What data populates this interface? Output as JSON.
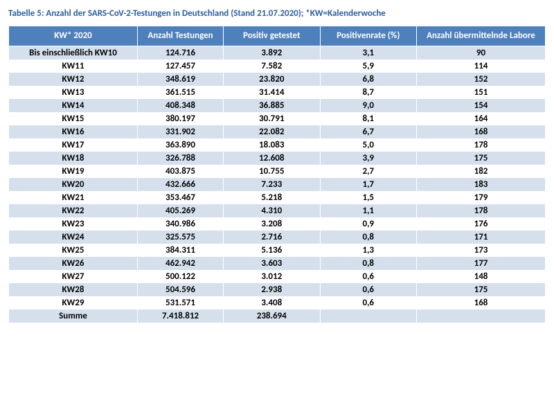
{
  "title_text": "Tabelle 5: Anzahl der SARS-CoV-2-Testungen in Deutschland (Stand 21.07.2020); *KW=Kalenderwoche",
  "title_color": "#2b5e9c",
  "table": {
    "type": "table",
    "header_bg": "#4e80bc",
    "header_fg": "#ffffff",
    "row_even_bg": "#d5e0ec",
    "row_odd_bg": "#ffffff",
    "cell_fontweight": "bold",
    "fontsize_pt": 10,
    "columns": [
      "KW* 2020",
      "Anzahl Testungen",
      "Positiv getestet",
      "Positivenrate (%)",
      "Anzahl übermittelnde Labore"
    ],
    "rows": [
      [
        "Bis einschließlich KW10",
        "124.716",
        "3.892",
        "3,1",
        "90"
      ],
      [
        "KW11",
        "127.457",
        "7.582",
        "5,9",
        "114"
      ],
      [
        "KW12",
        "348.619",
        "23.820",
        "6,8",
        "152"
      ],
      [
        "KW13",
        "361.515",
        "31.414",
        "8,7",
        "151"
      ],
      [
        "KW14",
        "408.348",
        "36.885",
        "9,0",
        "154"
      ],
      [
        "KW15",
        "380.197",
        "30.791",
        "8,1",
        "164"
      ],
      [
        "KW16",
        "331.902",
        "22.082",
        "6,7",
        "168"
      ],
      [
        "KW17",
        "363.890",
        "18.083",
        "5,0",
        "178"
      ],
      [
        "KW18",
        "326.788",
        "12.608",
        "3,9",
        "175"
      ],
      [
        "KW19",
        "403.875",
        "10.755",
        "2,7",
        "182"
      ],
      [
        "KW20",
        "432.666",
        "7.233",
        "1,7",
        "183"
      ],
      [
        "KW21",
        "353.467",
        "5.218",
        "1,5",
        "179"
      ],
      [
        "KW22",
        "405.269",
        "4.310",
        "1,1",
        "178"
      ],
      [
        "KW23",
        "340.986",
        "3.208",
        "0,9",
        "176"
      ],
      [
        "KW24",
        "325.575",
        "2.716",
        "0,8",
        "171"
      ],
      [
        "KW25",
        "384.311",
        "5.136",
        "1,3",
        "173"
      ],
      [
        "KW26",
        "462.942",
        "3.603",
        "0,8",
        "177"
      ],
      [
        "KW27",
        "500.122",
        "3.012",
        "0,6",
        "148"
      ],
      [
        "KW28",
        "504.596",
        "2.938",
        "0,6",
        "175"
      ],
      [
        "KW29",
        "531.571",
        "3.408",
        "0,6",
        "168"
      ],
      [
        "Summe",
        "7.418.812",
        "238.694",
        "",
        ""
      ]
    ]
  }
}
